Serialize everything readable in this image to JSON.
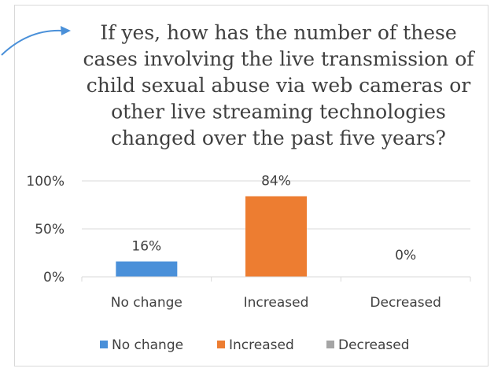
{
  "chart_data": {
    "type": "bar",
    "title": "If yes, how has the number of these cases involving the live transmission of child sexual abuse via web cameras or other live streaming technologies changed over the past five years?",
    "title_lines": [
      "If yes, how has the number of these",
      "cases involving the live transmission of",
      "child sexual abuse via web cameras or",
      "other live streaming technologies",
      "changed over the past five years?"
    ],
    "categories": [
      "No change",
      "Increased",
      "Decreased"
    ],
    "values": [
      16,
      84,
      0
    ],
    "data_labels": [
      "16%",
      "84%",
      "0%"
    ],
    "colors": [
      "#4a90d9",
      "#ed7d31",
      "#a5a5a5"
    ],
    "ylim": [
      0,
      100
    ],
    "yticks": [
      {
        "value": 0,
        "label": "0%"
      },
      {
        "value": 50,
        "label": "50%"
      },
      {
        "value": 100,
        "label": "100%"
      }
    ],
    "grid": true,
    "legend_position": "bottom",
    "legend": [
      {
        "name": "No change",
        "color": "#4a90d9"
      },
      {
        "name": "Increased",
        "color": "#ed7d31"
      },
      {
        "name": "Decreased",
        "color": "#a5a5a5"
      }
    ],
    "decorations": {
      "callout_arrow_color": "#4a90d9",
      "gridline_color": "#d9d9d9"
    }
  }
}
